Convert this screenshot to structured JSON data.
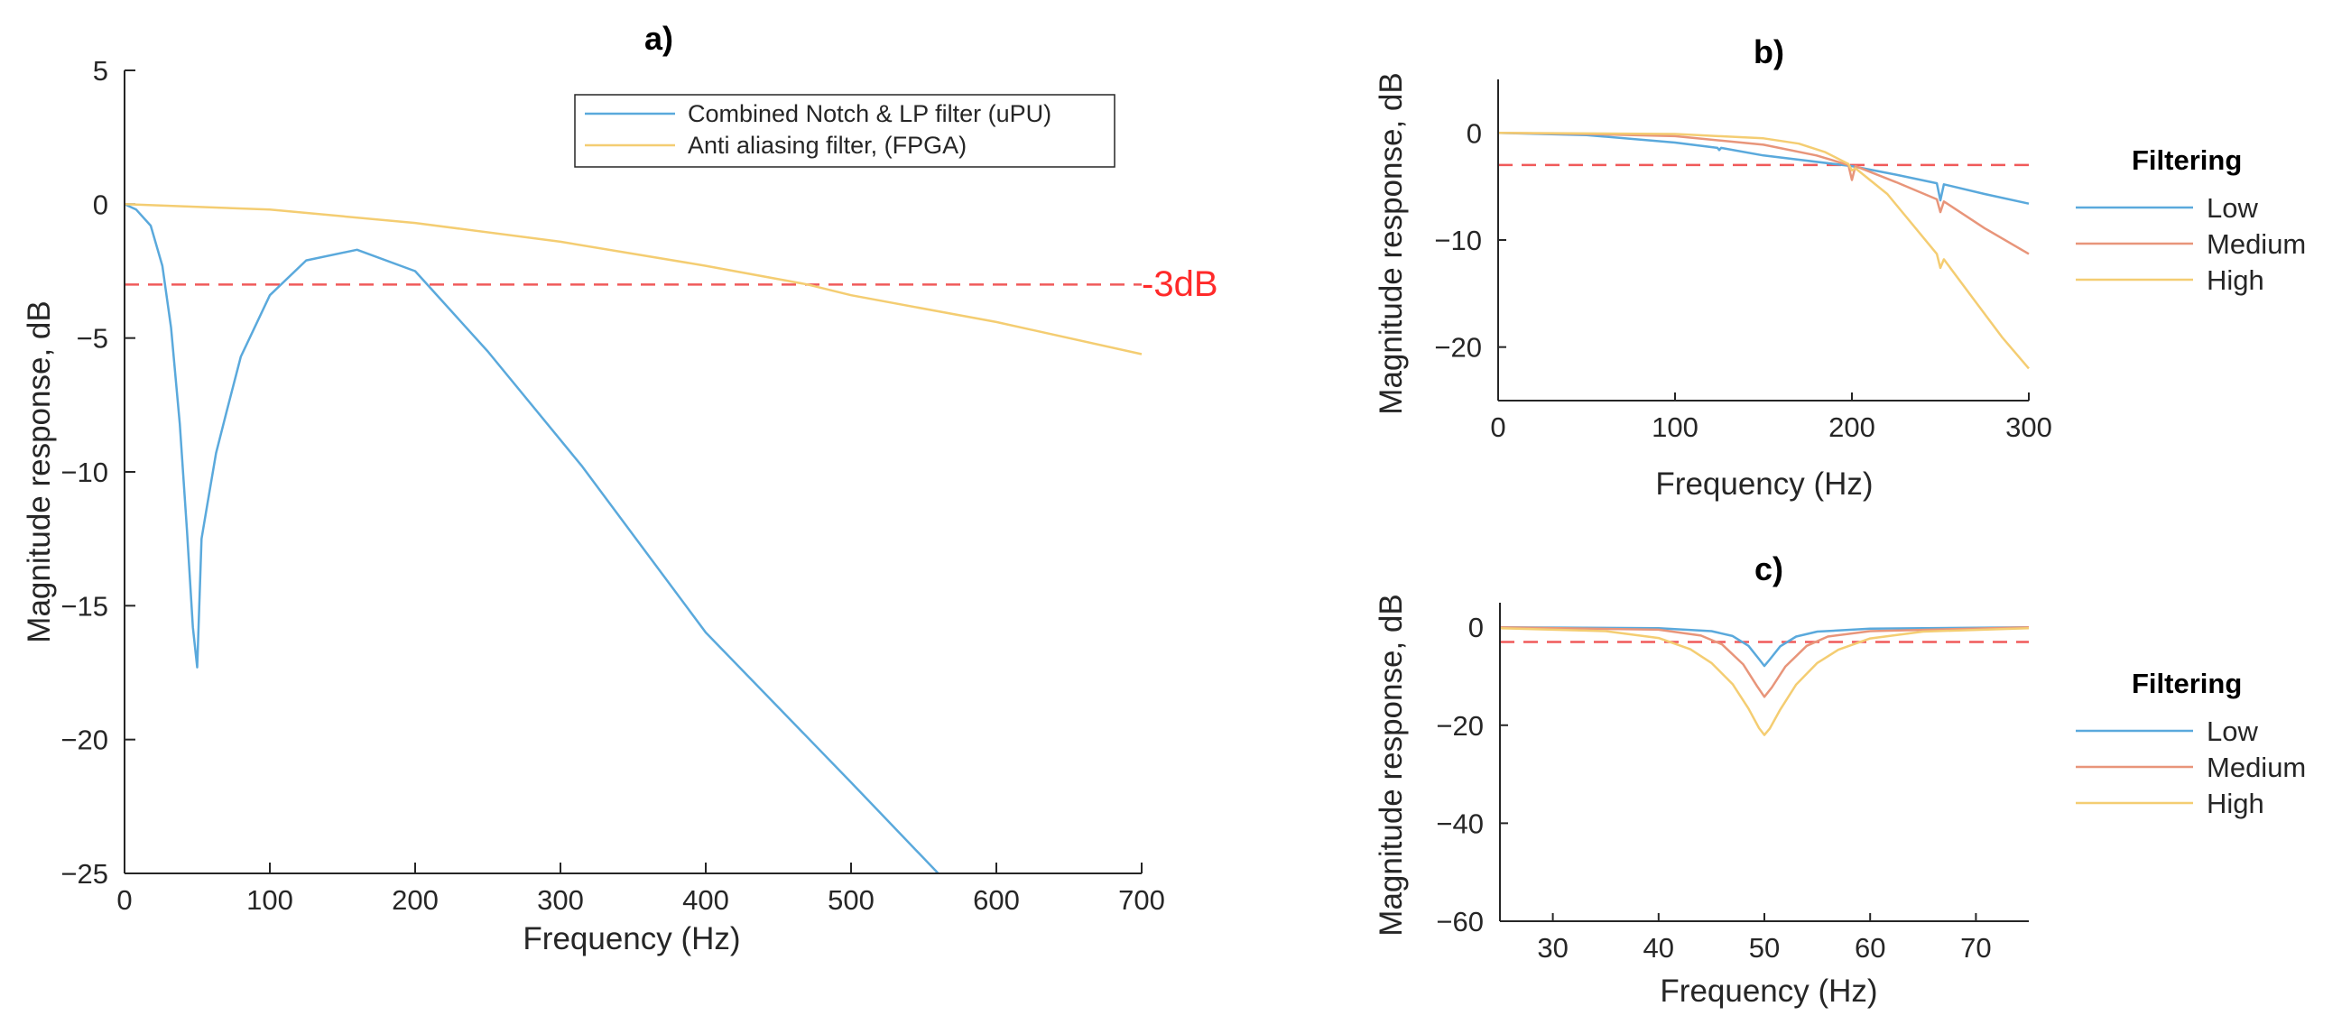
{
  "colors": {
    "blue": "#5aa9dc",
    "orange": "#e8957a",
    "yellow": "#f4cd72",
    "ref": "#f05a5a",
    "annotation": "#ff2a2a",
    "axis": "#262626"
  },
  "chart_data": [
    {
      "id": "a",
      "type": "line",
      "title": "a)",
      "xlabel": "Frequency (Hz)",
      "ylabel": "Magnitude response, dB",
      "xlim": [
        0,
        700
      ],
      "ylim": [
        -25,
        5
      ],
      "xticks": [
        0,
        100,
        200,
        300,
        400,
        500,
        600,
        700
      ],
      "yticks": [
        5,
        0,
        -5,
        -10,
        -15,
        -20,
        -25
      ],
      "xtick_labels": [
        "0",
        "100",
        "200",
        "300",
        "400",
        "500",
        "600",
        "700"
      ],
      "ytick_labels": [
        "5",
        "0",
        "−5",
        "−10",
        "−15",
        "−20",
        "−25"
      ],
      "legend_position": "top-right",
      "reference_line": {
        "y": -3,
        "style": "dashed",
        "label": "-3dB"
      },
      "series": [
        {
          "name": "Combined Notch & LP filter (uPU)",
          "color_key": "blue",
          "x": [
            0,
            8,
            18,
            26,
            32,
            38,
            43,
            47,
            50,
            53,
            57,
            63,
            70,
            80,
            100,
            125,
            160,
            200,
            250,
            315,
            400,
            500,
            560
          ],
          "y": [
            0,
            -0.2,
            -0.8,
            -2.3,
            -4.6,
            -8.2,
            -12.2,
            -15.8,
            -17.3,
            -12.5,
            -11.2,
            -9.3,
            -7.8,
            -5.7,
            -3.4,
            -2.1,
            -1.7,
            -2.5,
            -5.5,
            -9.8,
            -16.0,
            -21.6,
            -25
          ]
        },
        {
          "name": "Anti aliasing filter, (FPGA)",
          "color_key": "yellow",
          "x": [
            0,
            100,
            200,
            300,
            400,
            470,
            500,
            600,
            700
          ],
          "y": [
            0,
            -0.2,
            -0.7,
            -1.4,
            -2.3,
            -3.0,
            -3.4,
            -4.4,
            -5.6
          ]
        }
      ]
    },
    {
      "id": "b",
      "type": "line",
      "title": "b)",
      "xlabel": "Frequency (Hz)",
      "ylabel": "Magnitude response, dB",
      "xlim": [
        0,
        300
      ],
      "ylim": [
        -25,
        5
      ],
      "xticks": [
        0,
        100,
        200,
        300
      ],
      "yticks": [
        0,
        -10,
        -20
      ],
      "xtick_labels": [
        "0",
        "100",
        "200",
        "300"
      ],
      "ytick_labels": [
        "0",
        "−10",
        "−20"
      ],
      "reference_line": {
        "y": -3,
        "style": "dashed"
      },
      "legend_title": "Filtering",
      "series": [
        {
          "name": "Low",
          "color_key": "blue",
          "x": [
            0,
            50,
            100,
            124,
            125,
            126,
            150,
            200,
            225,
            248,
            250,
            252,
            275,
            300
          ],
          "y": [
            0,
            -0.2,
            -0.9,
            -1.4,
            -1.6,
            -1.4,
            -2.1,
            -3.1,
            -3.9,
            -4.7,
            -6.3,
            -4.8,
            -5.7,
            -6.6
          ]
        },
        {
          "name": "Medium",
          "color_key": "orange",
          "x": [
            0,
            50,
            100,
            150,
            180,
            198,
            200,
            202,
            225,
            248,
            250,
            252,
            275,
            300
          ],
          "y": [
            0,
            -0.1,
            -0.3,
            -1.1,
            -2.1,
            -3.0,
            -4.4,
            -3.1,
            -4.6,
            -6.2,
            -7.4,
            -6.4,
            -8.9,
            -11.3
          ]
        },
        {
          "name": "High",
          "color_key": "yellow",
          "x": [
            0,
            100,
            150,
            170,
            185,
            198,
            200,
            202,
            220,
            240,
            248,
            250,
            252,
            270,
            285,
            300
          ],
          "y": [
            0,
            -0.1,
            -0.5,
            -1.0,
            -1.8,
            -2.9,
            -3.5,
            -3.3,
            -5.7,
            -9.7,
            -11.3,
            -12.6,
            -11.8,
            -15.8,
            -19.1,
            -22.0
          ]
        }
      ]
    },
    {
      "id": "c",
      "type": "line",
      "title": "c)",
      "xlabel": "Frequency (Hz)",
      "ylabel": "Magnitude response, dB",
      "xlim": [
        25,
        75
      ],
      "ylim": [
        -60,
        5
      ],
      "xticks": [
        30,
        40,
        50,
        60,
        70
      ],
      "yticks": [
        0,
        -20,
        -40,
        -60
      ],
      "xtick_labels": [
        "30",
        "40",
        "50",
        "60",
        "70"
      ],
      "ytick_labels": [
        "0",
        "−20",
        "−40",
        "−60"
      ],
      "reference_line": {
        "y": -3,
        "style": "dashed"
      },
      "legend_title": "Filtering",
      "series": [
        {
          "name": "Low",
          "color_key": "blue",
          "x": [
            25,
            40,
            45,
            47,
            48.5,
            49.5,
            50,
            50.5,
            51.5,
            53,
            55,
            60,
            75
          ],
          "y": [
            0,
            -0.2,
            -0.8,
            -1.8,
            -3.8,
            -6.5,
            -7.9,
            -6.6,
            -3.9,
            -1.9,
            -0.9,
            -0.3,
            0
          ]
        },
        {
          "name": "Medium",
          "color_key": "orange",
          "x": [
            25,
            40,
            44,
            46,
            48,
            49.3,
            50,
            50.7,
            52,
            54,
            56,
            60,
            75
          ],
          "y": [
            0,
            -0.5,
            -1.7,
            -3.5,
            -7.6,
            -12.0,
            -14.2,
            -12.3,
            -8.0,
            -3.8,
            -1.9,
            -0.8,
            0
          ]
        },
        {
          "name": "High",
          "color_key": "yellow",
          "x": [
            25,
            35,
            40,
            43,
            45,
            47,
            48.5,
            49.5,
            50,
            50.5,
            51.5,
            53,
            55,
            57,
            60,
            65,
            75
          ],
          "y": [
            -0.2,
            -0.8,
            -2.2,
            -4.5,
            -7.3,
            -11.6,
            -16.6,
            -20.6,
            -22.0,
            -20.7,
            -16.8,
            -11.7,
            -7.3,
            -4.6,
            -2.3,
            -0.9,
            -0.2
          ]
        }
      ]
    }
  ]
}
